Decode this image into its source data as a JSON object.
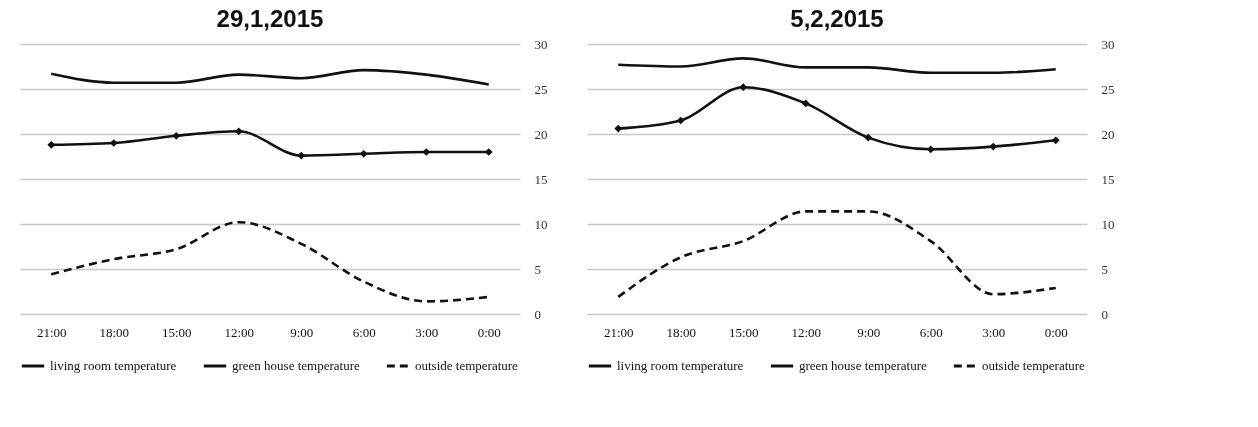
{
  "chart_data": [
    {
      "type": "line",
      "title": "29,1,2015",
      "categories": [
        "21:00",
        "18:00",
        "15:00",
        "12:00",
        "9:00",
        "6:00",
        "3:00",
        "0:00"
      ],
      "ylim": [
        0,
        30
      ],
      "yticks": [
        0,
        5,
        10,
        15,
        20,
        25,
        30
      ],
      "grid": "y",
      "legend": "bottom",
      "series": [
        {
          "name": "living room temperature",
          "color": "#111111",
          "line_style": "solid",
          "marker": "none",
          "values": [
            26.7,
            25.7,
            25.7,
            26.6,
            26.2,
            27.1,
            26.6,
            25.5
          ]
        },
        {
          "name": "green house temperature",
          "color": "#111111",
          "line_style": "solid",
          "marker": "diamond",
          "values": [
            18.8,
            19.0,
            19.8,
            20.3,
            17.6,
            17.8,
            18.0,
            18.0
          ]
        },
        {
          "name": "outside temperature",
          "color": "#111111",
          "line_style": "dashed",
          "marker": "none",
          "values": [
            4.4,
            6.1,
            7.2,
            10.2,
            7.8,
            3.6,
            1.4,
            1.9
          ]
        }
      ]
    },
    {
      "type": "line",
      "title": "5,2,2015",
      "categories": [
        "21:00",
        "18:00",
        "15:00",
        "12:00",
        "9:00",
        "6:00",
        "3:00",
        "0:00"
      ],
      "ylim": [
        0,
        30
      ],
      "yticks": [
        0,
        5,
        10,
        15,
        20,
        25,
        30
      ],
      "grid": "y",
      "legend": "bottom",
      "series": [
        {
          "name": "living room temperature",
          "color": "#111111",
          "line_style": "solid",
          "marker": "none",
          "values": [
            27.7,
            27.5,
            28.4,
            27.4,
            27.4,
            26.8,
            26.8,
            27.2
          ]
        },
        {
          "name": "green house temperature",
          "color": "#111111",
          "line_style": "solid",
          "marker": "diamond",
          "values": [
            20.6,
            21.5,
            25.2,
            23.4,
            19.6,
            18.3,
            18.6,
            19.3
          ]
        },
        {
          "name": "outside temperature",
          "color": "#111111",
          "line_style": "dashed",
          "marker": "none",
          "values": [
            1.9,
            6.3,
            8.1,
            11.4,
            11.4,
            8.1,
            2.2,
            2.9
          ]
        }
      ]
    }
  ]
}
